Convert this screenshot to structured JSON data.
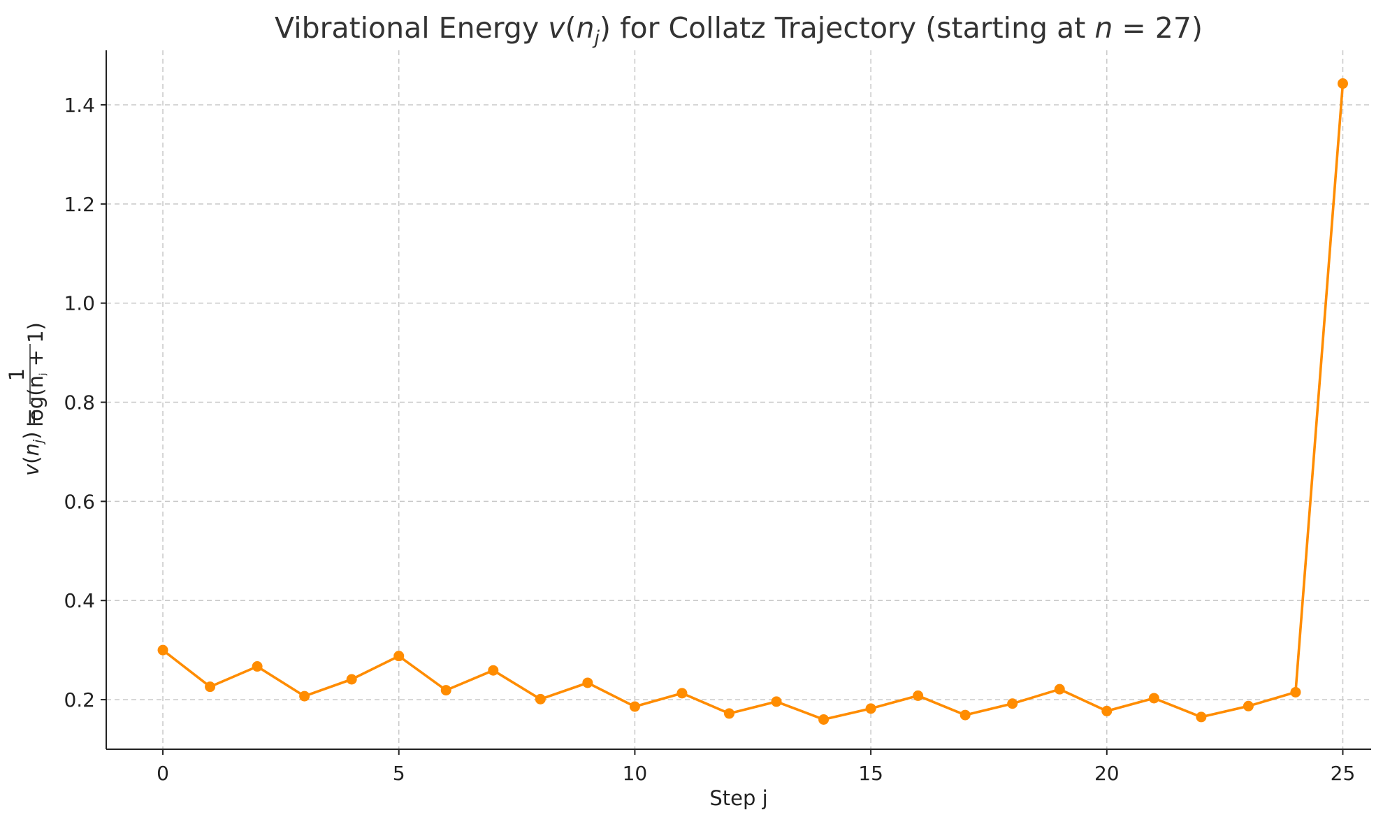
{
  "chart_data": {
    "type": "line",
    "title": {
      "prefix": "Vibrational Energy ",
      "math_v": "v",
      "math_open": "(",
      "math_n": "n",
      "math_j": "j",
      "math_close": ")",
      "middle": " for Collatz Trajectory (starting at ",
      "math_n2": "n",
      "math_eq": " = 27",
      "suffix": ")"
    },
    "xlabel": "Step j",
    "ylabel": {
      "v": "v",
      "open": "(",
      "n": "n",
      "j": "j",
      "close": ")",
      "eq": " =",
      "numerator": "1",
      "denominator": "log(n",
      "denominator_j": "j",
      "denominator_end": " + 1)"
    },
    "xlim": [
      -1.2,
      25.6
    ],
    "ylim": [
      0.1,
      1.51
    ],
    "x_ticks": [
      0,
      5,
      10,
      15,
      20,
      25
    ],
    "x_tick_labels": [
      "0",
      "5",
      "10",
      "15",
      "20",
      "25"
    ],
    "y_ticks": [
      0.2,
      0.4,
      0.6,
      0.8,
      1.0,
      1.2,
      1.4
    ],
    "y_tick_labels": [
      "0.2",
      "0.4",
      "0.6",
      "0.8",
      "1.0",
      "1.2",
      "1.4"
    ],
    "grid": true,
    "series": [
      {
        "color": "#ff8c00",
        "marker": "circle",
        "x": [
          0,
          1,
          2,
          3,
          4,
          5,
          6,
          7,
          8,
          9,
          10,
          11,
          12,
          13,
          14,
          15,
          16,
          17,
          18,
          19,
          20,
          21,
          22,
          23,
          24,
          25
        ],
        "values": [
          0.3,
          0.226,
          0.267,
          0.207,
          0.241,
          0.288,
          0.219,
          0.259,
          0.201,
          0.234,
          0.186,
          0.213,
          0.172,
          0.196,
          0.16,
          0.182,
          0.208,
          0.169,
          0.192,
          0.221,
          0.177,
          0.203,
          0.165,
          0.187,
          0.215,
          1.443
        ]
      }
    ]
  }
}
